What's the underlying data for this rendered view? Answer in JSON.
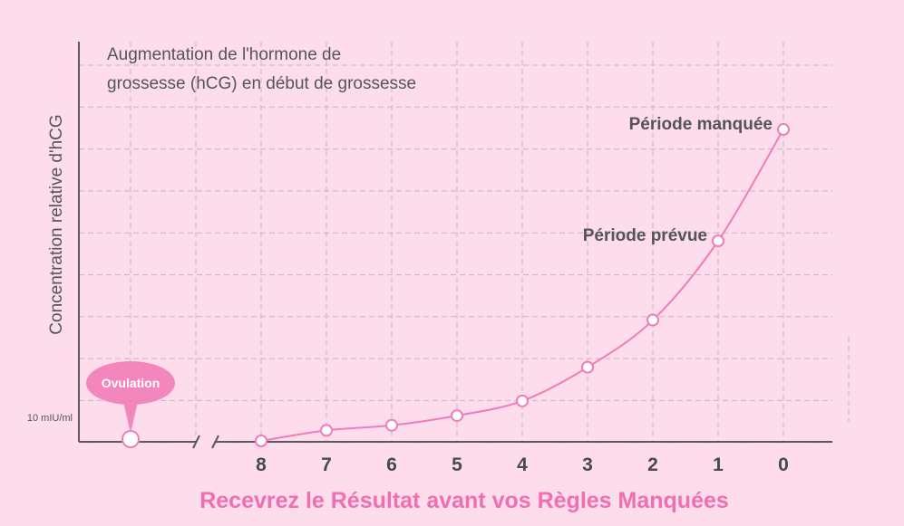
{
  "colors": {
    "background": "#fddcec",
    "axis": "#5b5b5b",
    "grid": "#c9b4c0",
    "line": "#f07dbb",
    "marker_fill": "#ffffff",
    "bubble": "#f286bd",
    "text": "#555555",
    "xlabel": "#f06fb2"
  },
  "chart_data": {
    "type": "line",
    "title": "Augmentation de l'hormone de grossesse (hCG) en début de grossesse",
    "title_lines": [
      "Augmentation de l'hormone de",
      "grossesse (hCG) en début de grossesse"
    ],
    "xlabel": "Recevrez le Résultat avant vos Règles Manquées",
    "ylabel": "Concentration relative d'hCG",
    "x_ticks": [
      "8",
      "7",
      "6",
      "5",
      "4",
      "3",
      "2",
      "1",
      "0"
    ],
    "y_min_label": "10 mIU/ml",
    "grid": true,
    "axis_break": true,
    "series": [
      {
        "x": [
          8,
          7,
          6,
          5,
          4,
          3,
          2,
          1,
          0
        ],
        "y": [
          0,
          2.5,
          3.7,
          6,
          9.5,
          17.5,
          28.7,
          47.5,
          74
        ]
      }
    ],
    "ovulation": {
      "label": "Ovulation",
      "y": 0
    },
    "annotations": [
      {
        "text": "Période prévue",
        "x": 1
      },
      {
        "text": "Période manquée",
        "x": 0
      }
    ]
  }
}
